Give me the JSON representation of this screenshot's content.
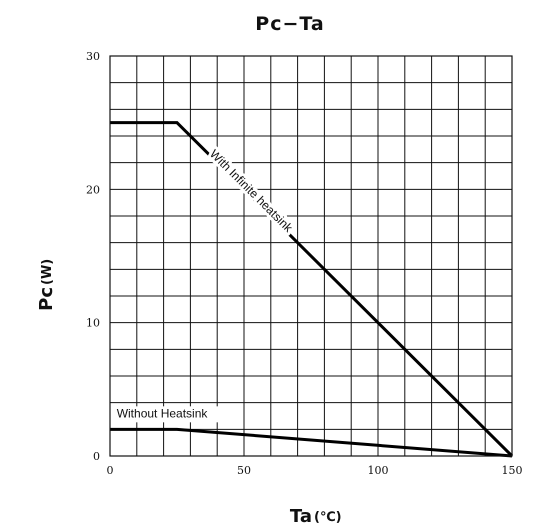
{
  "chart_data": {
    "type": "line",
    "title": "Pc−Ta",
    "xlabel": "Ta",
    "xlabel_unit": "(℃)",
    "ylabel": "Pc",
    "ylabel_unit": "(W)",
    "xlim": [
      0,
      150
    ],
    "ylim": [
      0,
      30
    ],
    "x_ticks": [
      0,
      50,
      100,
      150
    ],
    "y_ticks": [
      0,
      10,
      20,
      30
    ],
    "x_minor_step": 10,
    "y_minor_step": 2,
    "grid": true,
    "series": [
      {
        "name": "With Infinite heatsink",
        "x": [
          0,
          25,
          150
        ],
        "y": [
          25,
          25,
          0
        ]
      },
      {
        "name": "Without Heatsink",
        "x": [
          0,
          25,
          150
        ],
        "y": [
          2,
          2,
          0
        ]
      }
    ]
  }
}
